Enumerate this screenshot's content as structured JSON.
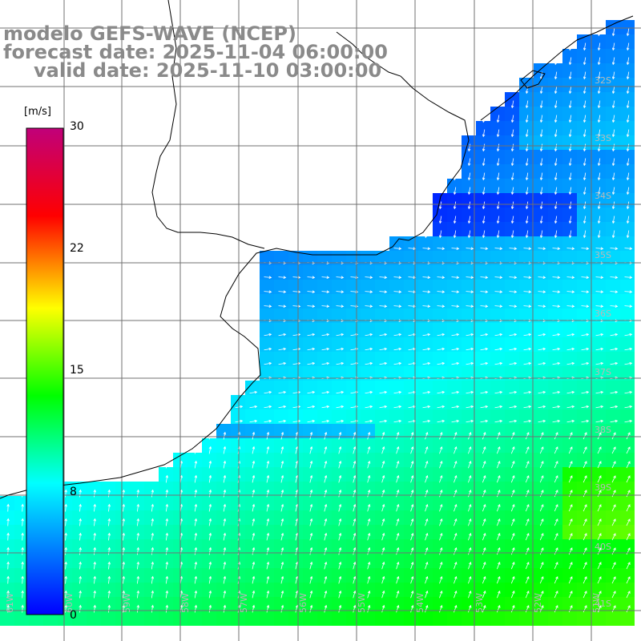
{
  "title": {
    "line1": "modelo GEFS-WAVE (NCEP)",
    "line2": "forecast date: 2025-11-04 06:00:00",
    "line3": "valid date: 2025-11-10 03:00:00"
  },
  "colorbar": {
    "unit": "[m/s]",
    "ticks": [
      "30",
      "22",
      "15",
      "8",
      "0"
    ],
    "range": [
      0,
      30
    ],
    "stops": [
      "#0000ff",
      "#00ffff",
      "#00ff00",
      "#ffff00",
      "#ff0000",
      "#c0007a"
    ]
  },
  "axes": {
    "lat_labels": [
      "32S",
      "33S",
      "34S",
      "35S",
      "36S",
      "37S",
      "38S",
      "39S",
      "40S",
      "41S"
    ],
    "lon_labels": [
      "61W",
      "60W",
      "59W",
      "58W",
      "57W",
      "56W",
      "55W",
      "54W",
      "53W",
      "52W",
      "51W"
    ]
  },
  "colors": {
    "land": "#ffffff",
    "grid": "#707070",
    "coast": "#000000",
    "title": "#8a8a8a"
  }
}
